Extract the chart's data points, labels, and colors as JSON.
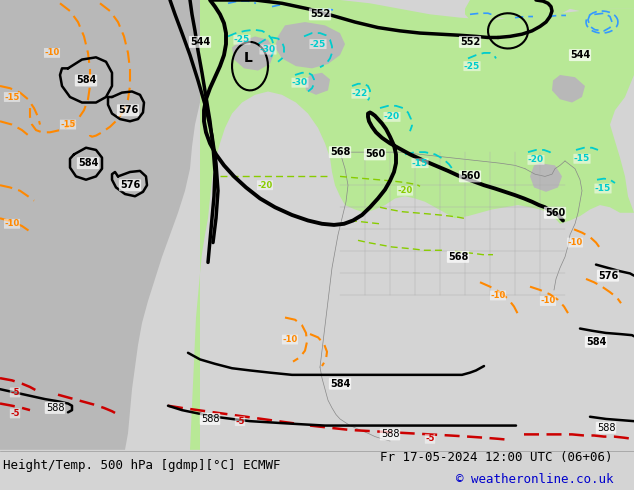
{
  "title": "Height/Temp. 500 hPa [gdmp][°C] ECMWF",
  "date_str": "Fr 17-05-2024 12:00 UTC (06+06)",
  "copyright": "© weatheronline.co.uk",
  "bg_color": "#d4d4d4",
  "ocean_color": "#d4d4d4",
  "land_gray_color": "#b8b8b8",
  "green_fill_color": "#b8e896",
  "bottom_bar_color": "#e8e8e8",
  "title_color": "#000000",
  "date_color": "#000000",
  "copyright_color": "#0000cc",
  "fig_width": 6.34,
  "fig_height": 4.9,
  "dpi": 100,
  "title_fontsize": 9.0,
  "date_fontsize": 9.0,
  "copyright_fontsize": 9.0
}
